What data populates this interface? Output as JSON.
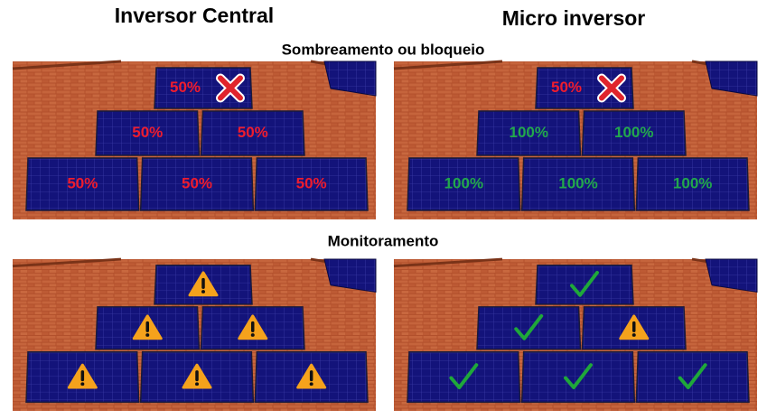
{
  "columns": [
    "Inversor Central",
    "Micro inversor"
  ],
  "sections": [
    {
      "title": "Sombreamento ou bloqueio",
      "scenes": [
        {
          "labels": [
            "50%",
            "50%",
            "50%",
            "50%",
            "50%",
            "50%"
          ]
        },
        {
          "labels": [
            "50%",
            "100%",
            "100%",
            "100%",
            "100%",
            "100%"
          ]
        }
      ]
    },
    {
      "title": "Monitoramento",
      "scenes": [
        {},
        {}
      ]
    }
  ]
}
